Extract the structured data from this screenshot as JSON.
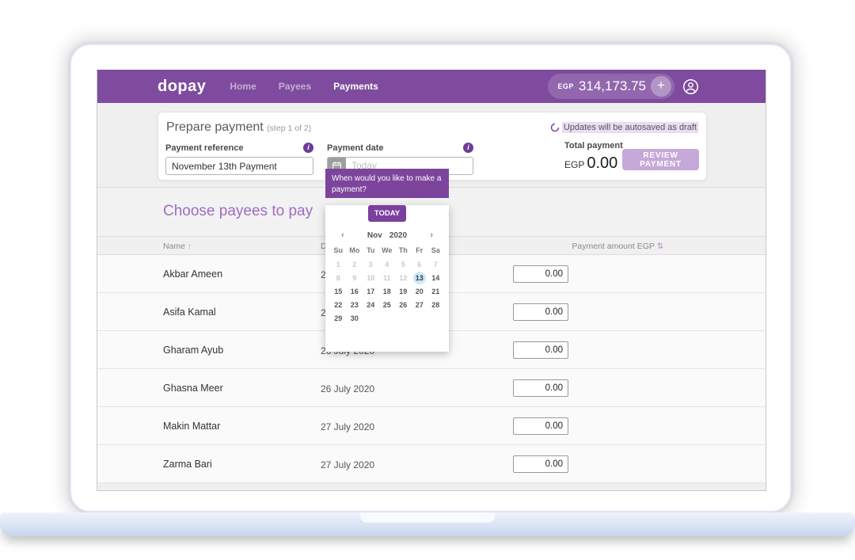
{
  "header": {
    "logo": "dopay",
    "nav": [
      {
        "label": "Home",
        "active": false
      },
      {
        "label": "Payees",
        "active": false
      },
      {
        "label": "Payments",
        "active": true
      }
    ],
    "balance": {
      "currency": "EGP",
      "amount": "314,173.75"
    },
    "plus_label": "+"
  },
  "prepare": {
    "title": "Prepare payment",
    "step": "(step 1 of 2)",
    "autosave_note": "Updates will be autosaved as draft",
    "reference": {
      "label": "Payment reference",
      "value": "November 13th Payment",
      "info_icon": "i"
    },
    "date": {
      "label": "Payment date",
      "placeholder": "Today",
      "info_icon": "i"
    },
    "total": {
      "label": "Total payment",
      "currency": "EGP",
      "amount": "0.00"
    },
    "review_button": "REVIEW PAYMENT"
  },
  "calendar": {
    "tooltip": "When would you like to make a payment?",
    "today_button": "TODAY",
    "prev": "‹",
    "next": "›",
    "month": "Nov",
    "year": "2020",
    "day_headers": [
      "Su",
      "Mo",
      "Tu",
      "We",
      "Th",
      "Fr",
      "Sa"
    ],
    "days": [
      {
        "d": "1",
        "s": "muted"
      },
      {
        "d": "2",
        "s": "muted"
      },
      {
        "d": "3",
        "s": "muted"
      },
      {
        "d": "4",
        "s": "muted"
      },
      {
        "d": "5",
        "s": "muted"
      },
      {
        "d": "6",
        "s": "muted"
      },
      {
        "d": "7",
        "s": "muted"
      },
      {
        "d": "8",
        "s": "muted"
      },
      {
        "d": "9",
        "s": "muted"
      },
      {
        "d": "10",
        "s": "muted"
      },
      {
        "d": "11",
        "s": "muted"
      },
      {
        "d": "12",
        "s": "muted"
      },
      {
        "d": "13",
        "s": "selected"
      },
      {
        "d": "14",
        "s": "normal"
      },
      {
        "d": "15",
        "s": "normal"
      },
      {
        "d": "16",
        "s": "normal"
      },
      {
        "d": "17",
        "s": "normal"
      },
      {
        "d": "18",
        "s": "normal"
      },
      {
        "d": "19",
        "s": "normal"
      },
      {
        "d": "20",
        "s": "normal"
      },
      {
        "d": "21",
        "s": "normal"
      },
      {
        "d": "22",
        "s": "normal"
      },
      {
        "d": "23",
        "s": "normal"
      },
      {
        "d": "24",
        "s": "normal"
      },
      {
        "d": "25",
        "s": "normal"
      },
      {
        "d": "26",
        "s": "normal"
      },
      {
        "d": "27",
        "s": "normal"
      },
      {
        "d": "28",
        "s": "normal"
      },
      {
        "d": "29",
        "s": "normal"
      },
      {
        "d": "30",
        "s": "normal"
      }
    ]
  },
  "payees": {
    "title": "Choose payees to pay",
    "columns": {
      "name": "Name",
      "name_sort": "↑",
      "date": "Date added",
      "amount": "Payment amount EGP",
      "amount_sort": "⇅"
    },
    "rows": [
      {
        "name": "Akbar Ameen",
        "date_added": "26 July 2020",
        "amount": "0.00"
      },
      {
        "name": "Asifa Kamal",
        "date_added": "26 July 2020",
        "amount": "0.00"
      },
      {
        "name": "Gharam Ayub",
        "date_added": "26 July 2020",
        "amount": "0.00"
      },
      {
        "name": "Ghasna Meer",
        "date_added": "26 July 2020",
        "amount": "0.00"
      },
      {
        "name": "Makin Mattar",
        "date_added": "27 July 2020",
        "amount": "0.00"
      },
      {
        "name": "Zarma Bari",
        "date_added": "27 July 2020",
        "amount": "0.00"
      }
    ]
  }
}
